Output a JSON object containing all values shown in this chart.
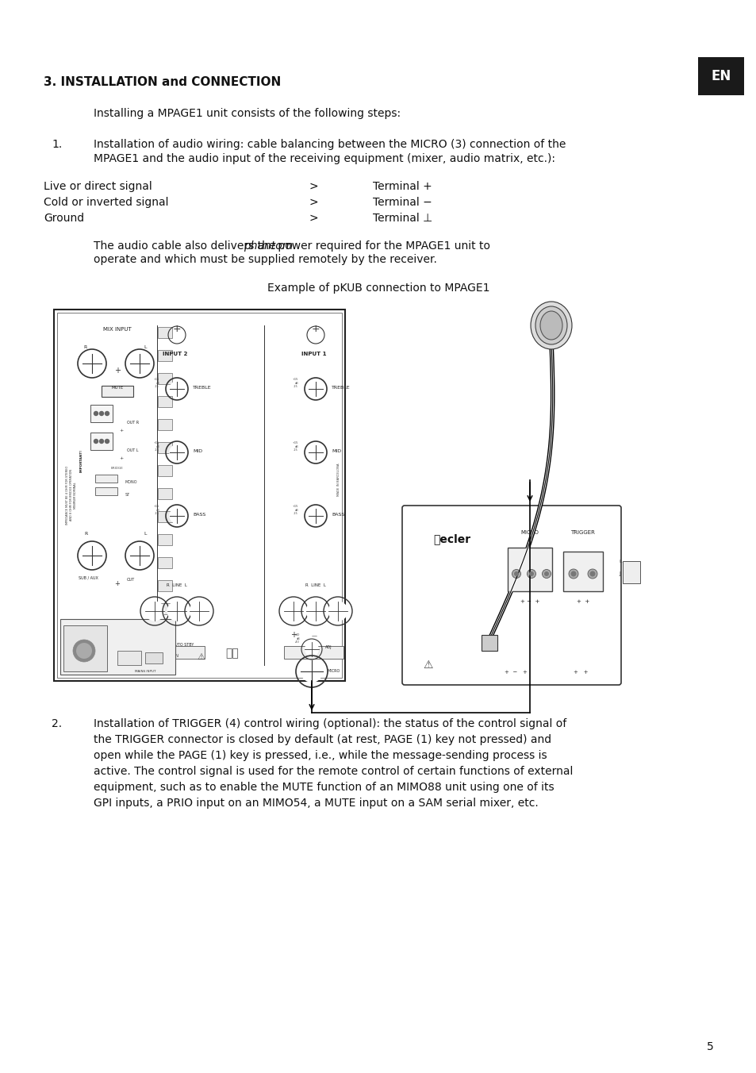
{
  "page_bg": "#ffffff",
  "page_number": "5",
  "section_title": "3. INSTALLATION and CONNECTION",
  "intro_text": "Installing a MPAGE1 unit consists of the following steps:",
  "item1_text_line1": "Installation of audio wiring: cable balancing between the MICRO (3) connection of the",
  "item1_text_line2": "MPAGE1 and the audio input of the receiving equipment (mixer, audio matrix, etc.):",
  "signal_rows": [
    [
      "Live or direct signal",
      ">",
      "Terminal +"
    ],
    [
      "Cold or inverted signal",
      ">",
      "Terminal −"
    ],
    [
      "Ground",
      ">",
      "Terminal ⊥"
    ]
  ],
  "phantom_pre": "The audio cable also delivers the ",
  "phantom_word": "phantom",
  "phantom_post": " power required for the MPAGE1 unit to",
  "phantom_line2": "operate and which must be supplied remotely by the receiver.",
  "example_caption": "Example of pKUB connection to MPAGE1",
  "item2_text": "Installation of TRIGGER (4) control wiring (optional): the status of the control signal of\nthe TRIGGER connector is closed by default (at rest, PAGE (1) key not pressed) and\nopen while the PAGE (1) key is pressed, i.e., while the message-sending process is\nactive. The control signal is used for the remote control of certain functions of external\nequipment, such as to enable the MUTE function of an MIMO88 unit using one of its\nGPI inputs, a PRIO input on an MIMO54, a MUTE input on a SAM serial mixer, etc."
}
